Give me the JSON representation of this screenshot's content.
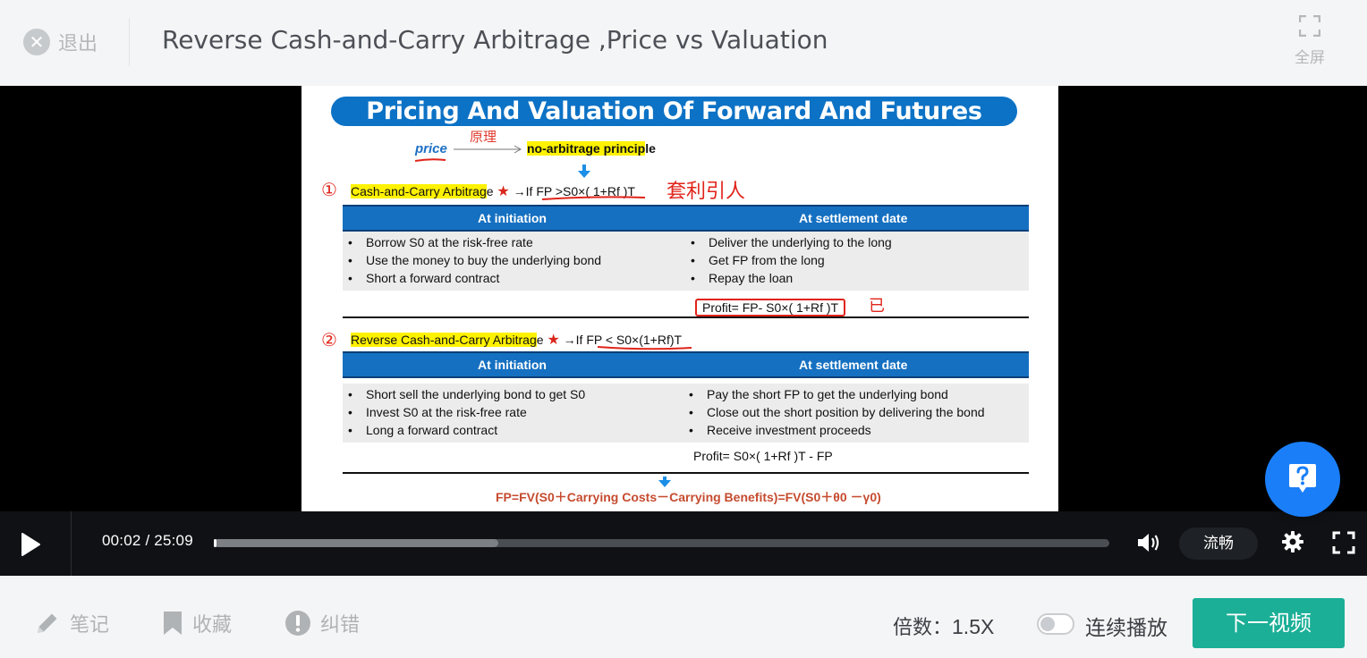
{
  "header": {
    "exit_label": "退出",
    "title": "Reverse Cash-and-Carry Arbitrage ,Price vs Valuation",
    "fullscreen_label": "全屏"
  },
  "slide": {
    "banner": "Pricing And Valuation Of Forward And Futures",
    "price_word": "price",
    "yuanli_note": "原理",
    "nap_highlight": "no-arbitrage princip",
    "nap_tail": "le",
    "section1": {
      "marker": "①",
      "title_hl": "Cash-and-Carry Arbitrag",
      "title_tail": "e",
      "condition": "→If FP >S0×( 1+Rf )T",
      "handnote": "套利引人",
      "col_left": "At initiation",
      "col_right": "At settlement date",
      "left_items": [
        "Borrow S0 at the risk-free rate",
        "Use the money to buy the underlying bond",
        "Short a forward contract"
      ],
      "right_items": [
        "Deliver the underlying to the long",
        "Get FP from the long",
        "Repay the loan"
      ],
      "profit": "Profit= FP- S0×( 1+Rf )T",
      "profit_note": "已"
    },
    "section2": {
      "marker": "②",
      "title_hl": "Reverse Cash-and-Carry Arbitrag",
      "title_tail": "e",
      "condition": "→If FP < S0×(1+Rf)T",
      "col_left": "At initiation",
      "col_right": "At settlement date",
      "left_items": [
        "Short sell the underlying bond to get S0",
        "Invest S0 at the risk-free rate",
        "Long a forward contract"
      ],
      "right_items": [
        "Pay the short FP to get the underlying bond",
        "Close out the short position by delivering the bond",
        "Receive investment proceeds"
      ],
      "profit": "Profit= S0×( 1+Rf )T - FP"
    },
    "formula": "FP=FV(S0＋Carrying Costs－Carrying Benefits)=FV(S0＋θ0 －γ0)"
  },
  "player": {
    "current_time": "00:02",
    "duration": "25:09",
    "time_display": "00:02 / 25:09",
    "progress_fraction": 0.0013,
    "buffered_fraction": 0.318,
    "quality_label": "流畅"
  },
  "toolbar": {
    "notes_label": "笔记",
    "favorite_label": "收藏",
    "report_label": "纠错",
    "speed_prefix": "倍数：",
    "speed_value": "1.5X",
    "autoplay_label": "连续播放",
    "autoplay_on": false,
    "next_label": "下一视频"
  },
  "colors": {
    "accent_green": "#1baf97",
    "help_blue": "#1a7ef8",
    "slide_blue": "#0c72c5",
    "highlight_yellow": "#fff200",
    "annotation_red": "#e0241a"
  },
  "icons": {
    "exit": "close-circle-icon",
    "fullscreen": "expand-icon",
    "play": "play-icon",
    "volume": "volume-icon",
    "settings": "gear-icon",
    "help": "question-icon",
    "notes": "pencil-icon",
    "favorite": "bookmark-icon",
    "report": "exclamation-icon"
  }
}
